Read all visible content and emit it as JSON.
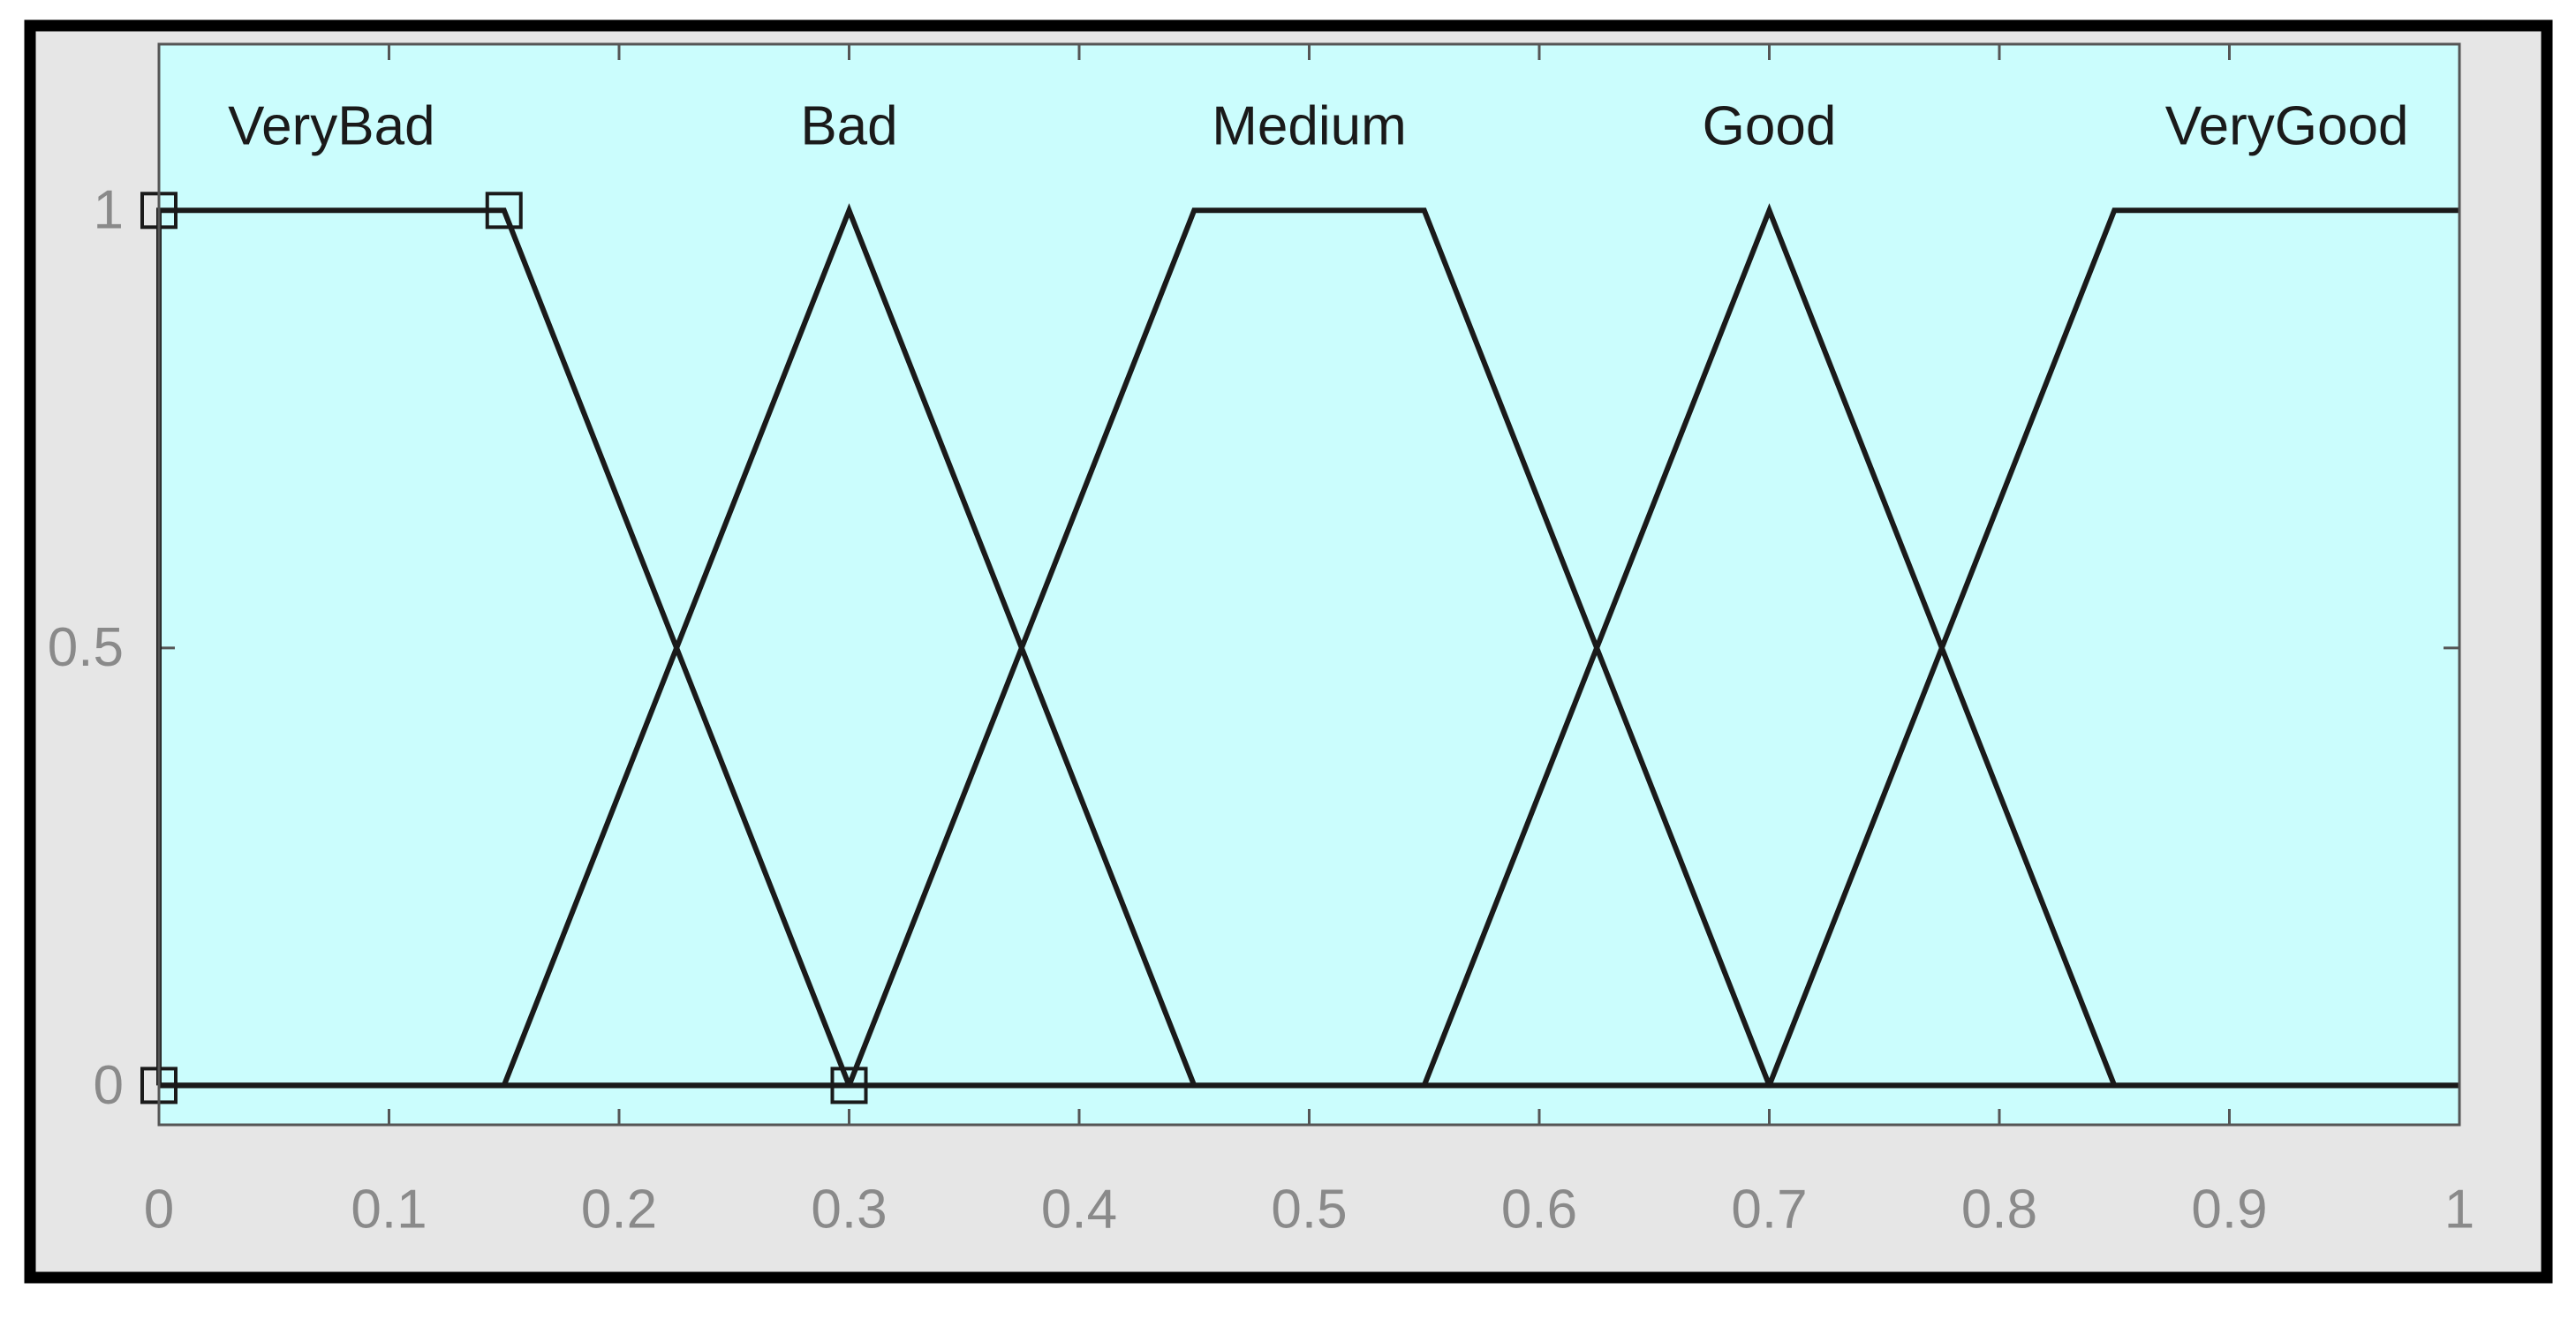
{
  "chart_data": {
    "type": "line",
    "xlim": [
      0,
      1
    ],
    "ylim": [
      -0.045,
      1.19
    ],
    "xticks": [
      0,
      0.1,
      0.2,
      0.3,
      0.4,
      0.5,
      0.6,
      0.7,
      0.8,
      0.9,
      1
    ],
    "yticks": [
      0,
      0.5,
      1
    ],
    "background": "#cbfdfd",
    "line_color": "#1a1a1a",
    "series": [
      {
        "name": "VeryBad",
        "x": [
          0,
          0,
          0.15,
          0.3
        ],
        "values": [
          0,
          1,
          1,
          0
        ],
        "markers": true
      },
      {
        "name": "Bad",
        "x": [
          0,
          0.15,
          0.3,
          0.45,
          1
        ],
        "values": [
          0,
          0,
          1,
          0,
          0
        ]
      },
      {
        "name": "Medium",
        "x": [
          0,
          0.3,
          0.45,
          0.55,
          0.7,
          1
        ],
        "values": [
          0,
          0,
          1,
          1,
          0,
          0
        ]
      },
      {
        "name": "Good",
        "x": [
          0,
          0.55,
          0.7,
          0.85,
          1
        ],
        "values": [
          0,
          0,
          1,
          0,
          0
        ]
      },
      {
        "name": "VeryGood",
        "x": [
          0,
          0.7,
          0.85,
          1
        ],
        "values": [
          0,
          0,
          1,
          1
        ]
      }
    ]
  }
}
